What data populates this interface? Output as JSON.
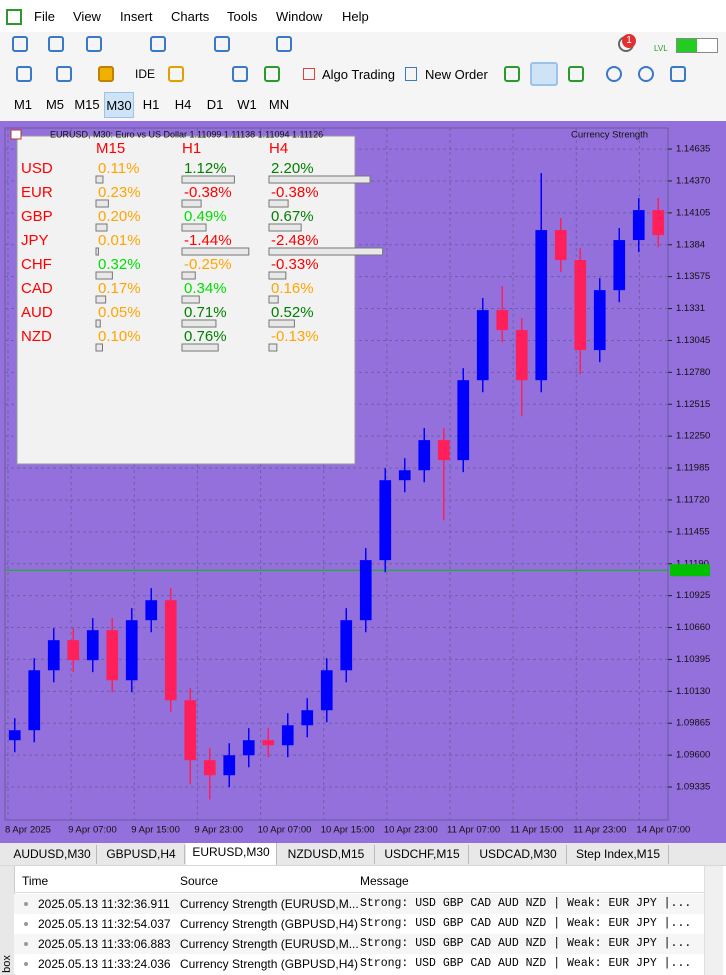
{
  "menu": [
    "File",
    "View",
    "Insert",
    "Charts",
    "Tools",
    "Window",
    "Help"
  ],
  "toolbar": {
    "level": "LVL",
    "badge": "1",
    "ide": "IDE",
    "algo": "Algo Trading",
    "order": "New Order"
  },
  "timeframes": {
    "items": [
      "M1",
      "M5",
      "M15",
      "M30",
      "H1",
      "H4",
      "D1",
      "W1",
      "MN"
    ],
    "selected": 3
  },
  "chart_data": {
    "type": "candlestick",
    "title": "EURUSD, M30:  Euro vs US Dollar  1.11099 1.11138 1.11094 1.11126",
    "indicator": "Currency Strength",
    "open": [
      1.09724,
      1.09807,
      1.10305,
      1.10555,
      1.10389,
      1.10638,
      1.10222,
      1.10721,
      1.10887,
      1.10056,
      1.09558,
      1.09433,
      1.09599,
      1.09724,
      1.09682,
      1.09848,
      1.09973,
      1.10305,
      1.10721,
      1.1122,
      1.11884,
      1.11967,
      1.12217,
      1.12051,
      1.12715,
      1.13297,
      1.13131,
      1.12715,
      1.13962,
      1.13713,
      1.12965,
      1.13463,
      1.13879,
      1.14128
    ],
    "high": [
      1.09907,
      1.10405,
      1.10655,
      1.10655,
      1.10738,
      1.10738,
      1.10821,
      1.10987,
      1.10987,
      1.10156,
      1.09658,
      1.09699,
      1.09824,
      1.09824,
      1.09948,
      1.10073,
      1.10405,
      1.10821,
      1.1132,
      1.11984,
      1.12067,
      1.12317,
      1.12317,
      1.12815,
      1.13397,
      1.13497,
      1.13231,
      1.14435,
      1.14062,
      1.13813,
      1.13563,
      1.13979,
      1.14228,
      1.14228
    ],
    "low": [
      1.09624,
      1.09707,
      1.10205,
      1.10289,
      1.10289,
      1.10122,
      1.10122,
      1.10621,
      1.09956,
      1.09358,
      1.09233,
      1.09333,
      1.09499,
      1.09582,
      1.09582,
      1.09748,
      1.09873,
      1.10205,
      1.10621,
      1.1112,
      1.11784,
      1.11867,
      1.11551,
      1.11951,
      1.12615,
      1.13031,
      1.12415,
      1.12615,
      1.13613,
      1.12765,
      1.12865,
      1.13363,
      1.13779,
      1.1382
    ],
    "close": [
      1.09807,
      1.10305,
      1.10555,
      1.10389,
      1.10638,
      1.10222,
      1.10721,
      1.10887,
      1.10056,
      1.09558,
      1.09433,
      1.09599,
      1.09724,
      1.09682,
      1.09848,
      1.09973,
      1.10305,
      1.10721,
      1.1122,
      1.11884,
      1.11967,
      1.12217,
      1.12051,
      1.12715,
      1.13297,
      1.13131,
      1.12715,
      1.13962,
      1.13713,
      1.12965,
      1.13463,
      1.13879,
      1.14128,
      1.1392
    ],
    "up_color": "#0000ff",
    "down_color": "#ff1f5a",
    "background": "#9370db",
    "grid": true,
    "current_price": 1.11136,
    "current_price_color": "#00c000",
    "ylim": [
      1.09061,
      1.1481
    ],
    "yticks": [
      1.14635,
      {
        "value": 1.1437,
        "label": "1.14370"
      },
      1.14105,
      1.1384,
      1.13575,
      1.1331,
      1.13045,
      {
        "value": 1.1278,
        "label": "1.12780"
      },
      1.12515,
      {
        "value": 1.1225,
        "label": "1.12250"
      },
      1.11985,
      {
        "value": 1.1172,
        "label": "1.11720"
      },
      1.11455,
      {
        "value": 1.1119,
        "label": "1.11190"
      },
      1.10925,
      {
        "value": 1.1066,
        "label": "1.10660"
      },
      1.10395,
      {
        "value": 1.1013,
        "label": "1.10130"
      },
      1.09865,
      {
        "value": 1.096,
        "label": "1.09600"
      },
      1.09335
    ],
    "x_tick_labels": [
      "8 Apr 2025",
      "9 Apr 07:00",
      "9 Apr 15:00",
      "9 Apr 23:00",
      "10 Apr 07:00",
      "10 Apr 15:00",
      "10 Apr 23:00",
      "11 Apr 07:00",
      "11 Apr 15:00",
      "11 Apr 23:00",
      "14 Apr 07:00"
    ]
  },
  "panel": {
    "columns": [
      "M15",
      "H1",
      "H4"
    ],
    "header_color": "#ff0000",
    "currency_color": "#ff0000",
    "rows": [
      {
        "currency": "USD",
        "cells": [
          {
            "value": 0.11,
            "label": "0.11%",
            "color": "#ffa500"
          },
          {
            "value": 1.12,
            "label": "1.12%",
            "color": "#008000"
          },
          {
            "value": 2.2,
            "label": "2.20%",
            "color": "#008000"
          }
        ]
      },
      {
        "currency": "EUR",
        "cells": [
          {
            "value": 0.23,
            "label": "0.23%",
            "color": "#ffa500"
          },
          {
            "value": -0.38,
            "label": "-0.38%",
            "color": "#ff0000"
          },
          {
            "value": -0.38,
            "label": "-0.38%",
            "color": "#ff0000"
          }
        ]
      },
      {
        "currency": "GBP",
        "cells": [
          {
            "value": 0.2,
            "label": "0.20%",
            "color": "#ffa500"
          },
          {
            "value": 0.49,
            "label": "0.49%",
            "color": "#00e000"
          },
          {
            "value": 0.67,
            "label": "0.67%",
            "color": "#008000"
          }
        ]
      },
      {
        "currency": "JPY",
        "cells": [
          {
            "value": 0.01,
            "label": "0.01%",
            "color": "#ffa500"
          },
          {
            "value": -1.44,
            "label": "-1.44%",
            "color": "#ff0000"
          },
          {
            "value": -2.48,
            "label": "-2.48%",
            "color": "#ff0000"
          }
        ]
      },
      {
        "currency": "CHF",
        "cells": [
          {
            "value": 0.32,
            "label": "0.32%",
            "color": "#00e000"
          },
          {
            "value": -0.25,
            "label": "-0.25%",
            "color": "#ffa500"
          },
          {
            "value": -0.33,
            "label": "-0.33%",
            "color": "#ff0000"
          }
        ]
      },
      {
        "currency": "CAD",
        "cells": [
          {
            "value": 0.17,
            "label": "0.17%",
            "color": "#ffa500"
          },
          {
            "value": 0.34,
            "label": "0.34%",
            "color": "#00e000"
          },
          {
            "value": 0.16,
            "label": "0.16%",
            "color": "#ffa500"
          }
        ]
      },
      {
        "currency": "AUD",
        "cells": [
          {
            "value": 0.05,
            "label": "0.05%",
            "color": "#ffa500"
          },
          {
            "value": 0.71,
            "label": "0.71%",
            "color": "#008000"
          },
          {
            "value": 0.52,
            "label": "0.52%",
            "color": "#008000"
          }
        ]
      },
      {
        "currency": "NZD",
        "cells": [
          {
            "value": 0.1,
            "label": "0.10%",
            "color": "#ffa500"
          },
          {
            "value": 0.76,
            "label": "0.76%",
            "color": "#008000"
          },
          {
            "value": -0.13,
            "label": "-0.13%",
            "color": "#ffa500"
          }
        ]
      }
    ]
  },
  "tabs": {
    "items": [
      "AUDUSD,M30",
      "GBPUSD,H4",
      "EURUSD,M30",
      "NZDUSD,M15",
      "USDCHF,M15",
      "USDCAD,M30",
      "Step Index,M15"
    ],
    "active": 2
  },
  "log": {
    "side": "box",
    "headers": [
      "Time",
      "Source",
      "Message"
    ],
    "rows": [
      [
        "2025.05.13 11:32:36.911",
        "Currency Strength (EURUSD,M...",
        "Strong: USD GBP CAD AUD NZD | Weak: EUR JPY |..."
      ],
      [
        "2025.05.13 11:32:54.037",
        "Currency Strength (GBPUSD,H4)",
        "Strong: USD GBP CAD AUD NZD | Weak: EUR JPY |..."
      ],
      [
        "2025.05.13 11:33:06.883",
        "Currency Strength (EURUSD,M...",
        "Strong: USD GBP CAD AUD NZD | Weak: EUR JPY |..."
      ],
      [
        "2025.05.13 11:33:24.036",
        "Currency Strength (GBPUSD,H4)",
        "Strong: USD GBP CAD AUD NZD | Weak: EUR JPY |..."
      ]
    ]
  }
}
